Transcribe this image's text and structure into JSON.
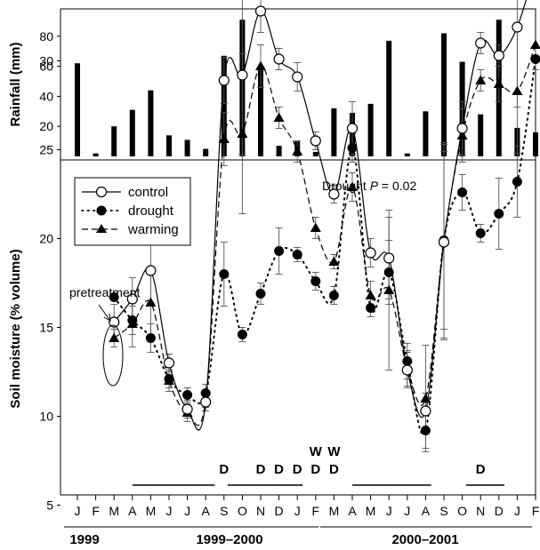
{
  "chart_data": [
    {
      "type": "bar",
      "ylabel": "Rainfall (mm)",
      "ylim": [
        0,
        95
      ],
      "yticks": [
        20,
        40,
        60,
        80
      ],
      "categories": [
        "J",
        "F",
        "M",
        "A",
        "M",
        "J",
        "J",
        "A",
        "S",
        "O",
        "N",
        "D",
        "J",
        "F",
        "M",
        "A",
        "M",
        "J",
        "J",
        "A",
        "S",
        "O",
        "N",
        "D",
        "J",
        "F"
      ],
      "values": [
        62,
        2,
        20,
        31,
        44,
        14,
        11,
        5,
        67,
        91,
        58,
        7,
        10,
        3,
        32,
        29,
        35,
        77,
        2,
        30,
        82,
        63,
        28,
        91,
        19,
        16
      ]
    },
    {
      "type": "line",
      "ylabel": "Soil moisture (% volume)",
      "ylim": [
        2,
        37.5
      ],
      "yticks": [
        5,
        10,
        15,
        20,
        25,
        30,
        35
      ],
      "categories": [
        "J",
        "F",
        "M",
        "A",
        "M",
        "J",
        "J",
        "A",
        "S",
        "O",
        "N",
        "D",
        "J",
        "F",
        "M",
        "A",
        "M",
        "J",
        "J",
        "A",
        "S",
        "O",
        "N",
        "D",
        "J",
        "F"
      ],
      "period_labels": [
        "1999",
        "1999–2000",
        "2000–2001"
      ],
      "annotation": {
        "prefix": "Drought ",
        "italic": "P",
        "suffix": " = 0.02"
      },
      "pretreatment_label": "pretreatment",
      "series": [
        {
          "name": "control",
          "marker": "open-circle",
          "x": [
            2,
            3,
            4,
            5,
            6,
            7,
            8,
            9,
            10,
            11,
            12,
            13,
            14,
            15,
            16,
            17,
            18,
            19,
            20,
            21,
            22,
            23,
            24,
            25
          ],
          "values": [
            15.3,
            16.6,
            18.2,
            13.0,
            10.4,
            10.8,
            28.9,
            29.2,
            32.8,
            30.1,
            29.1,
            25.5,
            22.5,
            26.2,
            19.2,
            18.9,
            12.6,
            10.3,
            19.8,
            26.2,
            31.0,
            30.3,
            31.9,
            35.3
          ],
          "err": [
            1.0,
            1.2,
            1.8,
            0.5,
            0.5,
            0.5,
            1.3,
            4.5,
            1.2,
            0.6,
            0.8,
            0.5,
            0.5,
            1.5,
            0.8,
            2.3,
            1.0,
            1.0,
            5.5,
            1.5,
            0.6,
            0.6,
            4.5,
            0
          ]
        },
        {
          "name": "drought",
          "marker": "filled-circle",
          "x": [
            2,
            3,
            4,
            5,
            6,
            7,
            8,
            9,
            10,
            11,
            12,
            13,
            14,
            15,
            16,
            17,
            18,
            19,
            20,
            21,
            22,
            23,
            24,
            25
          ],
          "values": [
            16.7,
            15.4,
            14.4,
            12.1,
            11.2,
            11.3,
            18.0,
            14.6,
            16.9,
            19.3,
            19.1,
            17.6,
            16.8,
            25.1,
            16.1,
            18.1,
            13.1,
            9.2,
            19.9,
            22.6,
            20.3,
            21.4,
            23.2,
            30.1
          ],
          "err": [
            0,
            0.8,
            0.8,
            0.5,
            0.4,
            0.5,
            1.8,
            0.4,
            0.6,
            1.3,
            0.4,
            0.5,
            0.5,
            0.8,
            0.5,
            1.8,
            1.0,
            1.0,
            5.0,
            1.0,
            0.5,
            2.0,
            2.0,
            0.6
          ]
        },
        {
          "name": "warming",
          "marker": "filled-triangle",
          "x": [
            2,
            3,
            4,
            5,
            6,
            7,
            8,
            9,
            10,
            11,
            12,
            13,
            14,
            15,
            16,
            17,
            18,
            19,
            20,
            21,
            22,
            23,
            24,
            25
          ],
          "values": [
            14.4,
            15.2,
            16.4,
            12.0,
            10.2,
            10.9,
            25.6,
            25.9,
            29.7,
            26.8,
            24.9,
            20.6,
            18.7,
            22.9,
            16.8,
            17.1,
            12.7,
            11.0,
            19.9,
            25.8,
            28.9,
            28.7,
            28.3,
            30.9
          ],
          "err": [
            0.5,
            1.3,
            1.8,
            0.6,
            0.5,
            0.4,
            1.5,
            4.5,
            1.2,
            0.6,
            0.6,
            0.6,
            0.4,
            0.8,
            0.8,
            4.5,
            1.0,
            3.0,
            5.5,
            1.5,
            0.6,
            1.0,
            3.5,
            0
          ]
        }
      ],
      "sig_markers": [
        {
          "x": 8,
          "labels": [
            "D"
          ]
        },
        {
          "x": 10,
          "labels": [
            "D"
          ]
        },
        {
          "x": 11,
          "labels": [
            "D"
          ]
        },
        {
          "x": 12,
          "labels": [
            "D"
          ]
        },
        {
          "x": 13,
          "labels": [
            "W",
            "D"
          ]
        },
        {
          "x": 14,
          "labels": [
            "W",
            "D"
          ]
        },
        {
          "x": 22,
          "labels": [
            "D"
          ]
        }
      ],
      "seasons": [
        {
          "from": 3,
          "to": 7.5
        },
        {
          "from": 8.2,
          "to": 12.3
        },
        {
          "from": 15,
          "to": 19.3
        },
        {
          "from": 21.2,
          "to": 23.3
        }
      ]
    }
  ]
}
